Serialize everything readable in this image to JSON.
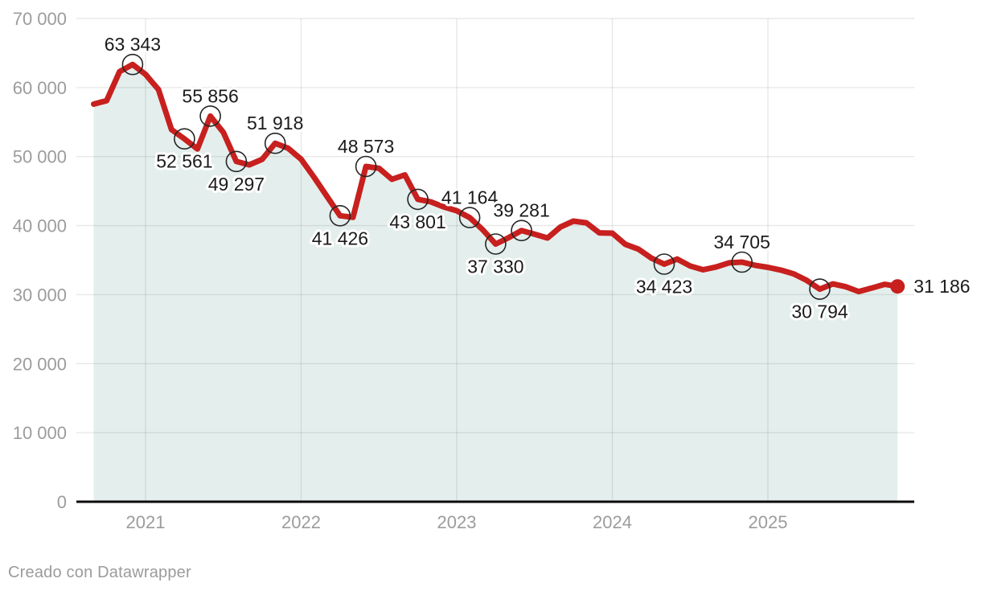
{
  "footer": {
    "credit": "Creado con Datawrapper"
  },
  "chart_data": {
    "type": "line",
    "title": "",
    "xlabel": "",
    "ylabel": "",
    "ylim": [
      0,
      70000
    ],
    "grid": true,
    "x": [
      "2020-09",
      "2020-10",
      "2020-11",
      "2020-12",
      "2021-01",
      "2021-02",
      "2021-03",
      "2021-04",
      "2021-05",
      "2021-06",
      "2021-07",
      "2021-08",
      "2021-09",
      "2021-10",
      "2021-11",
      "2021-12",
      "2022-01",
      "2022-02",
      "2022-03",
      "2022-04",
      "2022-05",
      "2022-06",
      "2022-07",
      "2022-08",
      "2022-09",
      "2022-10",
      "2022-11",
      "2022-12",
      "2023-01",
      "2023-02",
      "2023-03",
      "2023-04",
      "2023-05",
      "2023-06",
      "2023-07",
      "2023-08",
      "2023-09",
      "2023-10",
      "2023-11",
      "2023-12",
      "2024-01",
      "2024-02",
      "2024-03",
      "2024-04",
      "2024-05",
      "2024-06",
      "2024-07",
      "2024-08",
      "2024-09",
      "2024-10",
      "2024-11",
      "2024-12",
      "2025-01",
      "2025-02",
      "2025-03",
      "2025-04",
      "2025-05",
      "2025-06",
      "2025-07",
      "2025-08",
      "2025-09",
      "2025-10",
      "2025-11"
    ],
    "values": [
      57600,
      58100,
      62300,
      63343,
      61900,
      59700,
      53900,
      52561,
      51100,
      55856,
      53500,
      49297,
      48800,
      49600,
      51918,
      51200,
      49600,
      47000,
      44200,
      41426,
      41200,
      48573,
      48300,
      46700,
      47350,
      43801,
      43450,
      42700,
      42150,
      41164,
      39400,
      37330,
      38250,
      39281,
      38750,
      38200,
      39800,
      40650,
      40400,
      38950,
      38900,
      37300,
      36600,
      35300,
      34423,
      35150,
      34150,
      33600,
      34000,
      34600,
      34705,
      34250,
      33950,
      33550,
      33000,
      32050,
      30794,
      31550,
      31150,
      30450,
      30950,
      31500,
      31186
    ],
    "labeled_points": [
      {
        "x": "2020-12",
        "value": 63343,
        "label": "63 343",
        "placement": "above"
      },
      {
        "x": "2021-04",
        "value": 52561,
        "label": "52 561",
        "placement": "below"
      },
      {
        "x": "2021-06",
        "value": 55856,
        "label": "55 856",
        "placement": "above"
      },
      {
        "x": "2021-08",
        "value": 49297,
        "label": "49 297",
        "placement": "below"
      },
      {
        "x": "2021-11",
        "value": 51918,
        "label": "51 918",
        "placement": "above"
      },
      {
        "x": "2022-04",
        "value": 41426,
        "label": "41 426",
        "placement": "below"
      },
      {
        "x": "2022-06",
        "value": 48573,
        "label": "48 573",
        "placement": "above"
      },
      {
        "x": "2022-10",
        "value": 43801,
        "label": "43 801",
        "placement": "below"
      },
      {
        "x": "2023-02",
        "value": 41164,
        "label": "41 164",
        "placement": "above"
      },
      {
        "x": "2023-04",
        "value": 37330,
        "label": "37 330",
        "placement": "below"
      },
      {
        "x": "2023-06",
        "value": 39281,
        "label": "39 281",
        "placement": "above"
      },
      {
        "x": "2024-05",
        "value": 34423,
        "label": "34 423",
        "placement": "below"
      },
      {
        "x": "2024-11",
        "value": 34705,
        "label": "34 705",
        "placement": "above"
      },
      {
        "x": "2025-05",
        "value": 30794,
        "label": "30 794",
        "placement": "below"
      },
      {
        "x": "2025-11",
        "value": 31186,
        "label": "31 186",
        "placement": "right"
      }
    ],
    "yticks": [
      {
        "value": 0,
        "label": "0"
      },
      {
        "value": 10000,
        "label": "10 000"
      },
      {
        "value": 20000,
        "label": "20 000"
      },
      {
        "value": 30000,
        "label": "30 000"
      },
      {
        "value": 40000,
        "label": "40 000"
      },
      {
        "value": 50000,
        "label": "50 000"
      },
      {
        "value": 60000,
        "label": "60 000"
      },
      {
        "value": 70000,
        "label": "70 000"
      }
    ],
    "xticks": [
      "2021",
      "2022",
      "2023",
      "2024",
      "2025"
    ],
    "legend_position": "none",
    "colors": {
      "line": "#c7201e",
      "area": "#e4efed",
      "grid": "rgba(0,0,0,0.09)",
      "axis_text": "#9c9c9c",
      "label_text": "#1b1b1b",
      "marker_ring": "#262626",
      "baseline": "#0b0b0b",
      "label_halo": "#ffffff"
    }
  }
}
